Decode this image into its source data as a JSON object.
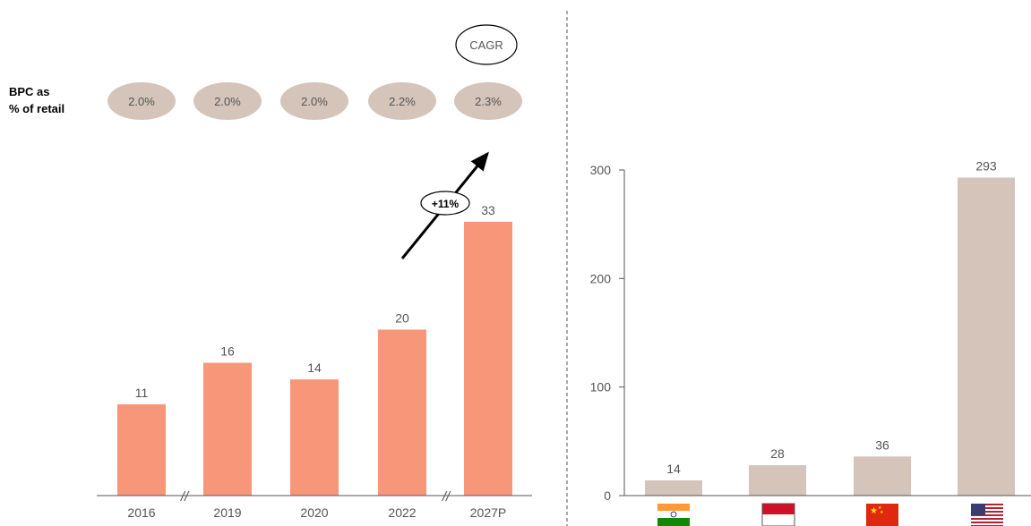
{
  "left_panel": {
    "row_label_line1": "BPC as",
    "row_label_line2": "% of retail",
    "cagr_label": "CAGR",
    "cagr_value": "+11%",
    "bubbles": [
      "2.0%",
      "2.0%",
      "2.0%",
      "2.2%",
      "2.3%"
    ],
    "break_marker": "//"
  },
  "flags": [
    "india-flag-icon",
    "indonesia-flag-icon",
    "china-flag-icon",
    "usa-flag-icon"
  ],
  "colors": {
    "left_bar": "#f79679",
    "right_bar": "#d4c4b9",
    "bubble": "#d4c4b9"
  },
  "chart_data": [
    {
      "type": "bar",
      "categories": [
        "2016",
        "2019",
        "2020",
        "2022",
        "2027P"
      ],
      "values": [
        11,
        16,
        14,
        20,
        33
      ],
      "value_labels": [
        "11",
        "16",
        "14",
        "20",
        "33"
      ],
      "axis_breaks_after": [
        "2016",
        "2022"
      ],
      "ylim": [
        0,
        36
      ]
    },
    {
      "type": "bar",
      "categories": [
        "India",
        "Indonesia",
        "China",
        "USA"
      ],
      "values": [
        14,
        28,
        36,
        293
      ],
      "value_labels": [
        "14",
        "28",
        "36",
        "293"
      ],
      "yticks": [
        "0",
        "100",
        "200",
        "300"
      ],
      "ylim": [
        0,
        300
      ]
    }
  ]
}
